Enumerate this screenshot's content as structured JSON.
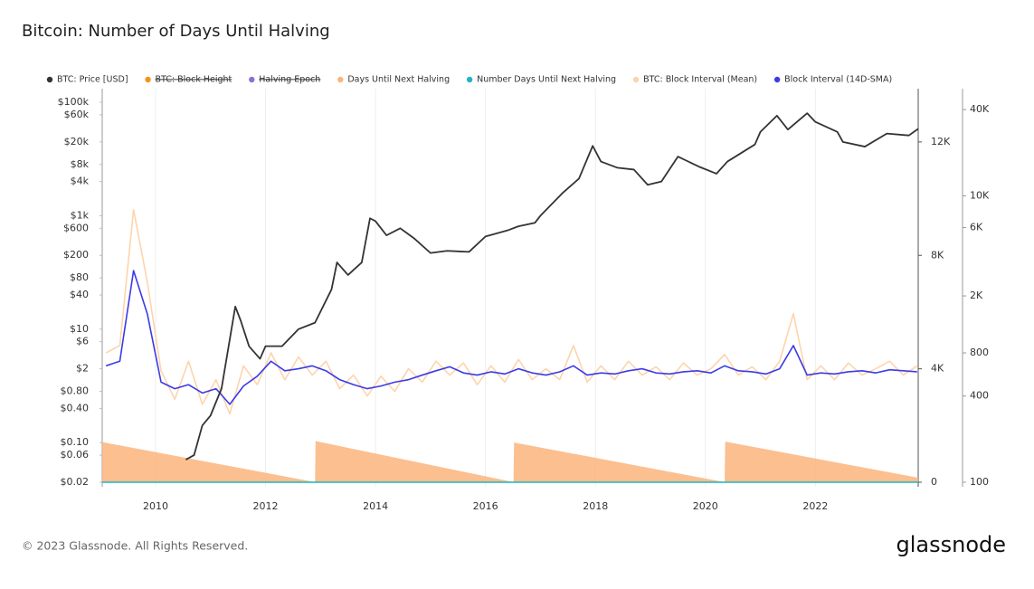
{
  "chart_data": {
    "type": "line",
    "title": "Bitcoin: Number of Days Until Halving",
    "footer": "© 2023 Glassnode. All Rights Reserved.",
    "logo": "glassnode",
    "xlim": [
      2009.03,
      2023.87
    ],
    "xticks": [
      2010,
      2012,
      2014,
      2016,
      2018,
      2020,
      2022
    ],
    "ylim": [
      0.02,
      100000
    ],
    "yscale": "log",
    "yticks": [
      {
        "value": 0.02,
        "label": "$0.02"
      },
      {
        "value": 0.06,
        "label": "$0.06"
      },
      {
        "value": 0.1,
        "label": "$0.10"
      },
      {
        "value": 0.4,
        "label": "$0.40"
      },
      {
        "value": 0.8,
        "label": "$0.80"
      },
      {
        "value": 2,
        "label": "$2"
      },
      {
        "value": 6,
        "label": "$6"
      },
      {
        "value": 10,
        "label": "$10"
      },
      {
        "value": 40,
        "label": "$40"
      },
      {
        "value": 80,
        "label": "$80"
      },
      {
        "value": 200,
        "label": "$200"
      },
      {
        "value": 600,
        "label": "$600"
      },
      {
        "value": 1000,
        "label": "$1k"
      },
      {
        "value": 4000,
        "label": "$4k"
      },
      {
        "value": 8000,
        "label": "$8k"
      },
      {
        "value": 20000,
        "label": "$20k"
      },
      {
        "value": 60000,
        "label": "$60k"
      },
      {
        "value": 100000,
        "label": "$100k"
      }
    ],
    "y2lim": [
      0,
      13400
    ],
    "y2ticks": [
      0,
      {
        "value": 4000,
        "label": "4K"
      },
      {
        "value": 8000,
        "label": "8K"
      },
      {
        "value": 12000,
        "label": "12K"
      }
    ],
    "y3lim": [
      100,
      45000
    ],
    "y3scale": "log",
    "y3ticks": [
      100,
      400,
      800,
      {
        "value": 2000,
        "label": "2K"
      },
      {
        "value": 6000,
        "label": "6K"
      },
      {
        "value": 10000,
        "label": "10K"
      },
      {
        "value": 40000,
        "label": "40K"
      }
    ],
    "grid": true,
    "series": [
      {
        "name": "BTC: Price [USD]",
        "color": "#333333",
        "axis": "y",
        "type": "line",
        "x": [
          2010.55,
          2010.7,
          2010.85,
          2011.0,
          2011.2,
          2011.45,
          2011.55,
          2011.7,
          2011.9,
          2012.0,
          2012.3,
          2012.6,
          2012.9,
          2013.2,
          2013.3,
          2013.5,
          2013.75,
          2013.9,
          2014.0,
          2014.2,
          2014.45,
          2014.7,
          2015.0,
          2015.3,
          2015.7,
          2016.0,
          2016.4,
          2016.6,
          2016.9,
          2017.0,
          2017.4,
          2017.7,
          2017.95,
          2018.1,
          2018.4,
          2018.7,
          2018.95,
          2019.2,
          2019.5,
          2019.9,
          2020.2,
          2020.4,
          2020.9,
          2021.0,
          2021.3,
          2021.5,
          2021.85,
          2022.0,
          2022.4,
          2022.5,
          2022.9,
          2023.3,
          2023.7,
          2023.87
        ],
        "values": [
          0.05,
          0.06,
          0.2,
          0.3,
          0.9,
          25,
          14,
          5,
          3,
          5,
          5,
          10,
          13,
          50,
          150,
          90,
          150,
          900,
          800,
          450,
          600,
          400,
          220,
          240,
          230,
          430,
          550,
          650,
          750,
          1000,
          2500,
          4500,
          17000,
          9000,
          7000,
          6500,
          3500,
          4000,
          11000,
          7200,
          5500,
          9000,
          18000,
          30000,
          58000,
          33000,
          64000,
          45000,
          30000,
          20000,
          16500,
          28000,
          26000,
          34000
        ]
      },
      {
        "name": "BTC: Block Height",
        "color": "#f7931a",
        "hidden": true,
        "x": [],
        "values": []
      },
      {
        "name": "Halving Epoch",
        "color": "#8c6fd0",
        "hidden": true,
        "x": [],
        "values": []
      },
      {
        "name": "Days Until Next Halving",
        "color": "#fbb47c",
        "axis": "y2",
        "type": "area",
        "x": [
          2009.03,
          2012.9,
          2012.91,
          2016.51,
          2016.52,
          2020.35,
          2020.36,
          2023.87
        ],
        "values": [
          1416,
          4,
          1450,
          4,
          1400,
          4,
          1430,
          160
        ]
      },
      {
        "name": "Number Days Until Next Halving",
        "color": "#1fb5c4",
        "axis": "y2",
        "type": "line",
        "x": [
          2009.03,
          2023.87
        ],
        "values": [
          0,
          0
        ]
      },
      {
        "name": "BTC: Block Interval (Mean)",
        "color": "#fdd4ac",
        "axis": "y3",
        "type": "line",
        "x": [
          2009.1,
          2009.35,
          2009.6,
          2009.85,
          2010.1,
          2010.35,
          2010.6,
          2010.85,
          2011.1,
          2011.35,
          2011.6,
          2011.85,
          2012.1,
          2012.35,
          2012.6,
          2012.85,
          2013.1,
          2013.35,
          2013.6,
          2013.85,
          2014.1,
          2014.35,
          2014.6,
          2014.85,
          2015.1,
          2015.35,
          2015.6,
          2015.85,
          2016.1,
          2016.35,
          2016.6,
          2016.85,
          2017.1,
          2017.35,
          2017.6,
          2017.85,
          2018.1,
          2018.35,
          2018.6,
          2018.85,
          2019.1,
          2019.35,
          2019.6,
          2019.85,
          2020.1,
          2020.35,
          2020.6,
          2020.85,
          2021.1,
          2021.35,
          2021.6,
          2021.85,
          2022.1,
          2022.35,
          2022.6,
          2022.85,
          2023.1,
          2023.35,
          2023.6,
          2023.85
        ],
        "values": [
          800,
          900,
          8000,
          2500,
          600,
          380,
          700,
          350,
          520,
          300,
          650,
          480,
          800,
          520,
          750,
          560,
          700,
          450,
          560,
          400,
          550,
          430,
          620,
          500,
          700,
          560,
          680,
          480,
          650,
          500,
          720,
          520,
          620,
          520,
          900,
          500,
          650,
          520,
          700,
          560,
          640,
          520,
          680,
          560,
          620,
          780,
          560,
          640,
          520,
          700,
          1500,
          520,
          650,
          520,
          680,
          560,
          620,
          700,
          560,
          650
        ]
      },
      {
        "name": "Block Interval (14D-SMA)",
        "color": "#3b3be8",
        "axis": "y3",
        "type": "line",
        "x": [
          2009.1,
          2009.35,
          2009.6,
          2009.85,
          2010.1,
          2010.35,
          2010.6,
          2010.85,
          2011.1,
          2011.35,
          2011.6,
          2011.85,
          2012.1,
          2012.35,
          2012.6,
          2012.85,
          2013.1,
          2013.35,
          2013.6,
          2013.85,
          2014.1,
          2014.35,
          2014.6,
          2014.85,
          2015.1,
          2015.35,
          2015.6,
          2015.85,
          2016.1,
          2016.35,
          2016.6,
          2016.85,
          2017.1,
          2017.35,
          2017.6,
          2017.85,
          2018.1,
          2018.35,
          2018.6,
          2018.85,
          2019.1,
          2019.35,
          2019.6,
          2019.85,
          2020.1,
          2020.35,
          2020.6,
          2020.85,
          2021.1,
          2021.35,
          2021.6,
          2021.85,
          2022.1,
          2022.35,
          2022.6,
          2022.85,
          2023.1,
          2023.35,
          2023.6,
          2023.85
        ],
        "values": [
          650,
          700,
          3000,
          1500,
          500,
          450,
          480,
          420,
          450,
          350,
          470,
          550,
          700,
          600,
          620,
          650,
          600,
          520,
          480,
          450,
          470,
          500,
          520,
          560,
          600,
          640,
          580,
          560,
          590,
          570,
          620,
          580,
          560,
          590,
          650,
          560,
          580,
          570,
          600,
          620,
          580,
          570,
          590,
          600,
          580,
          650,
          600,
          590,
          570,
          620,
          900,
          560,
          580,
          570,
          590,
          600,
          580,
          610,
          600,
          590
        ]
      }
    ]
  }
}
